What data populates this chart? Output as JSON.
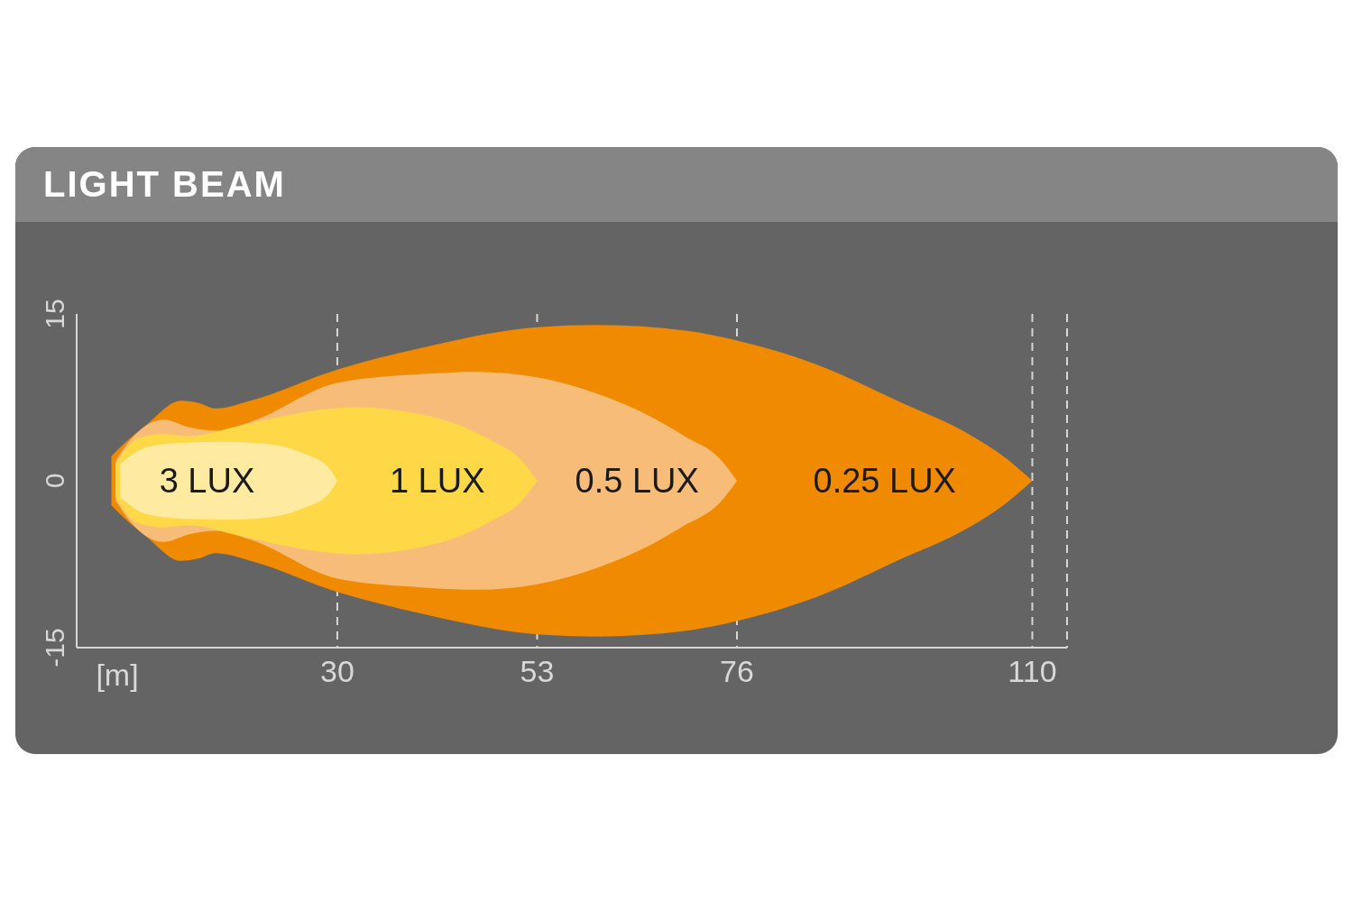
{
  "chart_data": {
    "type": "area",
    "title": "LIGHT BEAM",
    "xlabel": "[m]",
    "xlim": [
      0,
      114
    ],
    "xticks": [
      30,
      53,
      76,
      110
    ],
    "ylim": [
      -15,
      15
    ],
    "yticks": [
      -15,
      0,
      15
    ],
    "grid": "x",
    "series": [
      {
        "type": "area",
        "name": "0.25 LUX",
        "color": "#f08a00",
        "x": [
          4,
          5,
          8,
          12,
          14,
          16,
          20,
          30,
          40,
          53,
          60,
          70,
          76,
          85,
          95,
          102,
          107,
          110
        ],
        "values": [
          2.2,
          3,
          5,
          7.2,
          7,
          6.5,
          7.2,
          10,
          12,
          13.8,
          14,
          13.5,
          12.6,
          10.5,
          7,
          4.5,
          2,
          0
        ]
      },
      {
        "type": "area",
        "color": "#f08a00",
        "x": [
          4,
          5,
          8,
          12,
          14,
          16,
          20,
          30,
          40,
          53,
          60,
          70,
          76,
          85,
          95,
          102,
          107,
          110
        ],
        "values": [
          -2.2,
          -3,
          -5,
          -7.2,
          -7,
          -6.5,
          -7.2,
          -10,
          -12,
          -13.8,
          -14,
          -13.5,
          -12.6,
          -10.5,
          -7,
          -4.5,
          -2,
          0
        ]
      },
      {
        "type": "area",
        "name": "0.5 LUX",
        "color": "#f7bd78",
        "x": [
          4.5,
          6,
          10,
          13,
          16,
          20,
          30,
          40,
          46,
          53,
          60,
          66,
          70,
          74,
          76
        ],
        "values": [
          1.8,
          3.5,
          5.5,
          4.8,
          4.5,
          5.3,
          8.8,
          9.6,
          9.8,
          9.3,
          7.8,
          5.8,
          4,
          2,
          0
        ]
      },
      {
        "type": "area",
        "color": "#f7bd78",
        "x": [
          4.5,
          6,
          10,
          13,
          16,
          20,
          30,
          40,
          46,
          53,
          60,
          66,
          70,
          74,
          76
        ],
        "values": [
          -1.8,
          -3.5,
          -5.5,
          -4.8,
          -4.5,
          -5.3,
          -8.8,
          -9.6,
          -9.8,
          -9.3,
          -7.8,
          -5.8,
          -4,
          -2,
          0
        ]
      },
      {
        "type": "area",
        "name": "1 LUX",
        "color": "#fed847",
        "x": [
          4.5,
          7,
          10,
          13,
          18,
          25,
          32,
          38,
          44,
          48,
          51,
          53
        ],
        "values": [
          1.5,
          3.8,
          4.2,
          4,
          4.8,
          6,
          6.6,
          6.2,
          5,
          3.5,
          2,
          0
        ]
      },
      {
        "type": "area",
        "color": "#fed847",
        "x": [
          4.5,
          7,
          10,
          13,
          18,
          25,
          32,
          38,
          44,
          48,
          51,
          53
        ],
        "values": [
          -1.5,
          -3.8,
          -4.2,
          -4,
          -4.8,
          -6,
          -6.6,
          -6.2,
          -5,
          -3.5,
          -2,
          0
        ]
      },
      {
        "type": "area",
        "name": "3 LUX",
        "color": "#feeaa0",
        "x": [
          5,
          8,
          12,
          17,
          22,
          26,
          29,
          30
        ],
        "values": [
          1.5,
          3,
          3.4,
          3.5,
          3.3,
          2.5,
          1.2,
          0
        ]
      },
      {
        "type": "area",
        "color": "#feeaa0",
        "x": [
          5,
          8,
          12,
          17,
          22,
          26,
          29,
          30
        ],
        "values": [
          -1.5,
          -3,
          -3.4,
          -3.5,
          -3.3,
          -2.5,
          -1.2,
          0
        ]
      }
    ]
  }
}
